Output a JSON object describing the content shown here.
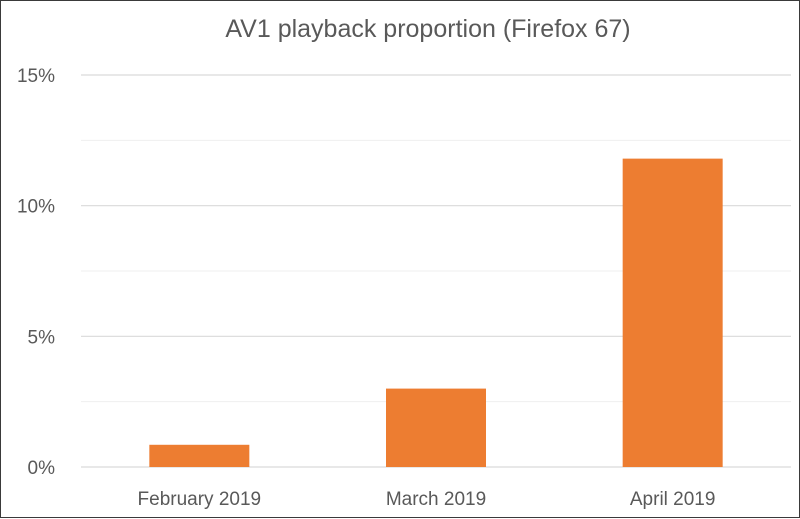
{
  "chart_data": {
    "type": "bar",
    "title": "AV1 playback proportion (Firefox 67)",
    "categories": [
      "February 2019",
      "March 2019",
      "April 2019"
    ],
    "values": [
      0.85,
      3.0,
      11.8
    ],
    "unit": "%",
    "ylim": [
      0,
      15
    ],
    "yticks": [
      0,
      5,
      10,
      15
    ],
    "ytick_labels": [
      "0%",
      "5%",
      "10%",
      "15%"
    ],
    "minor_gridlines_every": 2.5,
    "grid": true,
    "legend": "none",
    "bar_color": "#ED7D31"
  }
}
